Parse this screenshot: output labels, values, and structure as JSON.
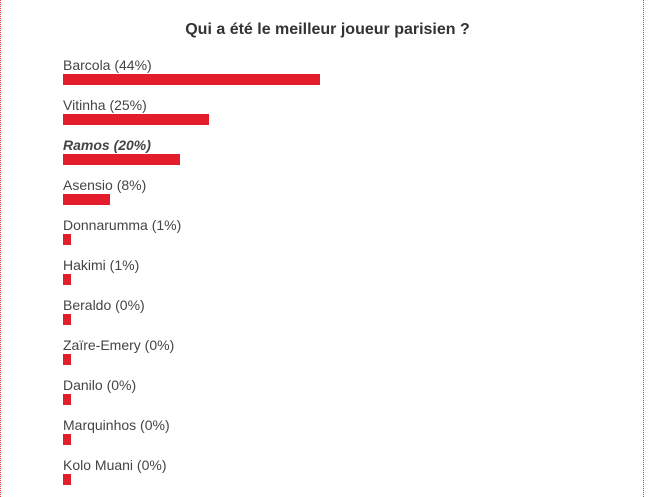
{
  "poll": {
    "question": "Qui a été le meilleur joueur parisien ?",
    "accent_color": "#e31d2b",
    "options": [
      {
        "label": "Barcola (44%)",
        "percent": 44,
        "selected": false
      },
      {
        "label": "Vitinha (25%)",
        "percent": 25,
        "selected": false
      },
      {
        "label": "Ramos (20%)",
        "percent": 20,
        "selected": true
      },
      {
        "label": "Asensio (8%)",
        "percent": 8,
        "selected": false
      },
      {
        "label": "Donnarumma (1%)",
        "percent": 1,
        "selected": false
      },
      {
        "label": "Hakimi (1%)",
        "percent": 1,
        "selected": false
      },
      {
        "label": "Beraldo (0%)",
        "percent": 0,
        "selected": false
      },
      {
        "label": "Zaïre-Emery (0%)",
        "percent": 0,
        "selected": false
      },
      {
        "label": "Danilo (0%)",
        "percent": 0,
        "selected": false
      },
      {
        "label": "Marquinhos (0%)",
        "percent": 0,
        "selected": false
      },
      {
        "label": "Kolo Muani (0%)",
        "percent": 0,
        "selected": false
      }
    ]
  }
}
